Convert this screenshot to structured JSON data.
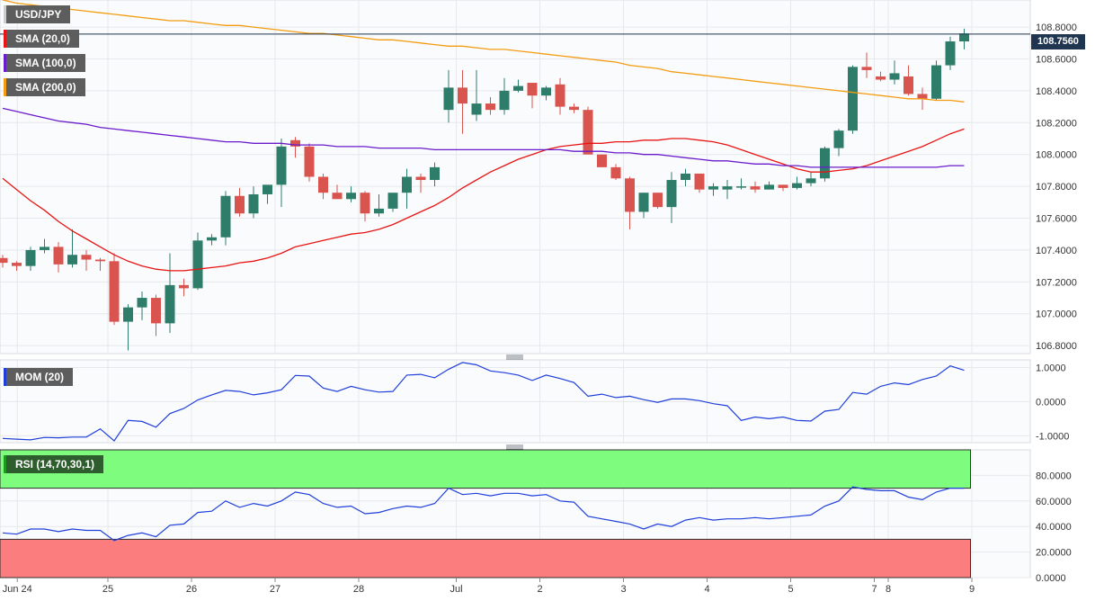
{
  "chart_data": {
    "type": "candlestick",
    "symbol": "USD/JPY",
    "last_price": "108.7560",
    "x_labels": [
      {
        "label": "Jun 24",
        "i": 1.5
      },
      {
        "label": "25",
        "i": 8
      },
      {
        "label": "26",
        "i": 14
      },
      {
        "label": "27",
        "i": 20
      },
      {
        "label": "28",
        "i": 26
      },
      {
        "label": "Jul",
        "i": 33
      },
      {
        "label": "2",
        "i": 39
      },
      {
        "label": "3",
        "i": 45
      },
      {
        "label": "4",
        "i": 51
      },
      {
        "label": "5",
        "i": 57
      },
      {
        "label": "7",
        "i": 63
      },
      {
        "label": "8",
        "i": 64
      },
      {
        "label": "9",
        "i": 70
      }
    ],
    "price_axis": {
      "range": [
        106.75,
        108.97
      ],
      "ticks": [
        "108.8000",
        "108.6000",
        "108.4000",
        "108.2000",
        "108.0000",
        "107.8000",
        "107.6000",
        "107.4000",
        "107.2000",
        "107.0000",
        "106.8000"
      ]
    },
    "candles": [
      [
        107.35,
        107.37,
        107.29,
        107.32
      ],
      [
        107.32,
        107.33,
        107.27,
        107.3
      ],
      [
        107.3,
        107.42,
        107.27,
        107.4
      ],
      [
        107.4,
        107.47,
        107.38,
        107.42
      ],
      [
        107.42,
        107.45,
        107.26,
        107.31
      ],
      [
        107.31,
        107.53,
        107.29,
        107.37
      ],
      [
        107.37,
        107.4,
        107.27,
        107.34
      ],
      [
        107.34,
        107.35,
        107.27,
        107.33
      ],
      [
        107.33,
        107.38,
        106.93,
        106.95
      ],
      [
        106.95,
        107.06,
        106.77,
        107.04
      ],
      [
        107.04,
        107.14,
        106.96,
        107.1
      ],
      [
        107.1,
        107.12,
        106.86,
        106.94
      ],
      [
        106.94,
        107.38,
        106.88,
        107.18
      ],
      [
        107.18,
        107.22,
        107.11,
        107.16
      ],
      [
        107.16,
        107.51,
        107.15,
        107.46
      ],
      [
        107.46,
        107.5,
        107.43,
        107.48
      ],
      [
        107.48,
        107.77,
        107.43,
        107.74
      ],
      [
        107.74,
        107.79,
        107.61,
        107.63
      ],
      [
        107.63,
        107.8,
        107.6,
        107.75
      ],
      [
        107.75,
        107.79,
        107.69,
        107.81
      ],
      [
        107.81,
        108.1,
        107.67,
        108.05
      ],
      [
        108.09,
        108.11,
        107.98,
        108.05
      ],
      [
        108.05,
        108.07,
        107.83,
        107.86
      ],
      [
        107.86,
        107.88,
        107.72,
        107.76
      ],
      [
        107.76,
        107.81,
        107.73,
        107.72
      ],
      [
        107.72,
        107.8,
        107.7,
        107.76
      ],
      [
        107.76,
        107.77,
        107.58,
        107.63
      ],
      [
        107.63,
        107.75,
        107.61,
        107.66
      ],
      [
        107.66,
        107.76,
        107.64,
        107.76
      ],
      [
        107.76,
        107.91,
        107.66,
        107.86
      ],
      [
        107.86,
        107.88,
        107.76,
        107.84
      ],
      [
        107.84,
        107.95,
        107.8,
        107.92
      ],
      [
        108.28,
        108.53,
        108.2,
        108.42
      ],
      [
        108.42,
        108.53,
        108.13,
        108.32
      ],
      [
        108.25,
        108.53,
        108.21,
        108.32
      ],
      [
        108.32,
        108.36,
        108.25,
        108.28
      ],
      [
        108.28,
        108.48,
        108.25,
        108.4
      ],
      [
        108.4,
        108.47,
        108.39,
        108.43
      ],
      [
        108.45,
        108.45,
        108.29,
        108.37
      ],
      [
        108.37,
        108.43,
        108.34,
        108.42
      ],
      [
        108.44,
        108.48,
        108.25,
        108.3
      ],
      [
        108.3,
        108.32,
        108.26,
        108.28
      ],
      [
        108.28,
        108.3,
        108.01,
        108.0
      ],
      [
        108.0,
        108.0,
        107.92,
        107.92
      ],
      [
        107.92,
        107.94,
        107.84,
        107.85
      ],
      [
        107.85,
        107.86,
        107.53,
        107.64
      ],
      [
        107.64,
        107.76,
        107.6,
        107.76
      ],
      [
        107.76,
        107.76,
        107.66,
        107.67
      ],
      [
        107.67,
        107.89,
        107.57,
        107.84
      ],
      [
        107.84,
        107.91,
        107.8,
        107.88
      ],
      [
        107.88,
        107.88,
        107.76,
        107.78
      ],
      [
        107.78,
        107.82,
        107.74,
        107.8
      ],
      [
        107.78,
        107.84,
        107.72,
        107.8
      ],
      [
        107.8,
        107.85,
        107.78,
        107.8
      ],
      [
        107.8,
        107.83,
        107.76,
        107.78
      ],
      [
        107.78,
        107.83,
        107.78,
        107.81
      ],
      [
        107.81,
        107.81,
        107.77,
        107.79
      ],
      [
        107.79,
        107.86,
        107.78,
        107.82
      ],
      [
        107.82,
        107.89,
        107.8,
        107.85
      ],
      [
        107.85,
        108.05,
        107.83,
        108.04
      ],
      [
        108.04,
        108.16,
        107.99,
        108.15
      ],
      [
        108.15,
        108.56,
        108.13,
        108.55
      ],
      [
        108.55,
        108.64,
        108.48,
        108.53
      ],
      [
        108.49,
        108.52,
        108.46,
        108.47
      ],
      [
        108.47,
        108.59,
        108.44,
        108.51
      ],
      [
        108.49,
        108.56,
        108.37,
        108.38
      ],
      [
        108.38,
        108.42,
        108.28,
        108.35
      ],
      [
        108.35,
        108.59,
        108.34,
        108.56
      ],
      [
        108.56,
        108.74,
        108.53,
        108.71
      ],
      [
        108.71,
        108.79,
        108.66,
        108.76
      ]
    ],
    "sma": [
      {
        "name": "SMA (20,0)",
        "color": "#e81515",
        "values": [
          107.85,
          107.78,
          107.71,
          107.65,
          107.58,
          107.52,
          107.47,
          107.42,
          107.37,
          107.33,
          107.3,
          107.28,
          107.27,
          107.27,
          107.28,
          107.29,
          107.3,
          107.32,
          107.33,
          107.35,
          107.38,
          107.42,
          107.44,
          107.46,
          107.48,
          107.5,
          107.51,
          107.53,
          107.56,
          107.6,
          107.64,
          107.68,
          107.73,
          107.79,
          107.84,
          107.89,
          107.93,
          107.97,
          108.0,
          108.03,
          108.05,
          108.06,
          108.07,
          108.07,
          108.08,
          108.08,
          108.09,
          108.09,
          108.1,
          108.1,
          108.09,
          108.08,
          108.06,
          108.03,
          108.0,
          107.97,
          107.94,
          107.91,
          107.89,
          107.89,
          107.9,
          107.91,
          107.93,
          107.96,
          107.99,
          108.02,
          108.05,
          108.09,
          108.13,
          108.16
        ]
      },
      {
        "name": "SMA (100,0)",
        "color": "#6a1bcc",
        "values": [
          108.29,
          108.27,
          108.25,
          108.23,
          108.21,
          108.2,
          108.19,
          108.17,
          108.16,
          108.15,
          108.14,
          108.13,
          108.12,
          108.11,
          108.1,
          108.09,
          108.08,
          108.08,
          108.07,
          108.07,
          108.07,
          108.06,
          108.06,
          108.06,
          108.05,
          108.05,
          108.05,
          108.04,
          108.04,
          108.04,
          108.04,
          108.03,
          108.03,
          108.03,
          108.03,
          108.03,
          108.03,
          108.03,
          108.03,
          108.03,
          108.03,
          108.02,
          108.02,
          108.02,
          108.01,
          108.01,
          108.0,
          108.0,
          107.99,
          107.98,
          107.97,
          107.96,
          107.96,
          107.95,
          107.94,
          107.94,
          107.93,
          107.93,
          107.92,
          107.92,
          107.92,
          107.92,
          107.92,
          107.92,
          107.92,
          107.92,
          107.92,
          107.92,
          107.93,
          107.93
        ]
      },
      {
        "name": "SMA (200,0)",
        "color": "#f39c12",
        "values": [
          108.97,
          108.95,
          108.94,
          108.93,
          108.92,
          108.91,
          108.9,
          108.89,
          108.88,
          108.87,
          108.86,
          108.85,
          108.84,
          108.84,
          108.83,
          108.82,
          108.81,
          108.81,
          108.8,
          108.79,
          108.78,
          108.77,
          108.76,
          108.76,
          108.75,
          108.74,
          108.73,
          108.72,
          108.72,
          108.71,
          108.7,
          108.69,
          108.68,
          108.68,
          108.67,
          108.66,
          108.66,
          108.65,
          108.64,
          108.63,
          108.62,
          108.61,
          108.6,
          108.59,
          108.58,
          108.56,
          108.55,
          108.54,
          108.52,
          108.51,
          108.5,
          108.49,
          108.48,
          108.47,
          108.46,
          108.45,
          108.44,
          108.43,
          108.42,
          108.41,
          108.4,
          108.39,
          108.38,
          108.37,
          108.36,
          108.35,
          108.35,
          108.34,
          108.34,
          108.33
        ]
      }
    ],
    "mom": {
      "name": "MOM (20)",
      "color": "#1f3fdb",
      "range": [
        -1.15,
        1.12
      ],
      "ticks": [
        "1.0000",
        "0.0000",
        "-1.0000"
      ],
      "values": [
        -1.08,
        -1.1,
        -1.12,
        -1.05,
        -1.06,
        -1.04,
        -1.04,
        -0.8,
        -1.15,
        -0.55,
        -0.58,
        -0.75,
        -0.35,
        -0.2,
        0.05,
        0.2,
        0.33,
        0.3,
        0.2,
        0.26,
        0.35,
        0.77,
        0.75,
        0.4,
        0.3,
        0.45,
        0.35,
        0.28,
        0.3,
        0.78,
        0.8,
        0.7,
        0.95,
        1.15,
        1.08,
        0.9,
        0.85,
        0.78,
        0.62,
        0.78,
        0.68,
        0.56,
        0.16,
        0.22,
        0.12,
        0.16,
        0.06,
        -0.02,
        0.08,
        0.08,
        0.03,
        -0.06,
        -0.12,
        -0.55,
        -0.45,
        -0.5,
        -0.45,
        -0.55,
        -0.57,
        -0.28,
        -0.23,
        0.27,
        0.22,
        0.45,
        0.55,
        0.5,
        0.65,
        0.75,
        1.05,
        0.92
      ]
    },
    "rsi": {
      "name": "RSI (14,70,30,1)",
      "color": "#1f3fdb",
      "range": [
        0,
        100
      ],
      "overbought": 70,
      "oversold": 30,
      "ticks": [
        "80.0000",
        "60.0000",
        "40.0000",
        "20.0000",
        "0.0000"
      ],
      "values": [
        35,
        34,
        38,
        38,
        36,
        38,
        37,
        37,
        29,
        33,
        35,
        32,
        41,
        42,
        51,
        52,
        60,
        55,
        58,
        56,
        60,
        67,
        65,
        58,
        55,
        56,
        50,
        51,
        54,
        56,
        55,
        58,
        70,
        65,
        66,
        64,
        66,
        66,
        64,
        65,
        60,
        59,
        48,
        46,
        44,
        42,
        38,
        42,
        40,
        45,
        47,
        45,
        46,
        46,
        47,
        46,
        47,
        48,
        49,
        56,
        60,
        71,
        69,
        68,
        68,
        63,
        61,
        67,
        70,
        70
      ]
    }
  }
}
